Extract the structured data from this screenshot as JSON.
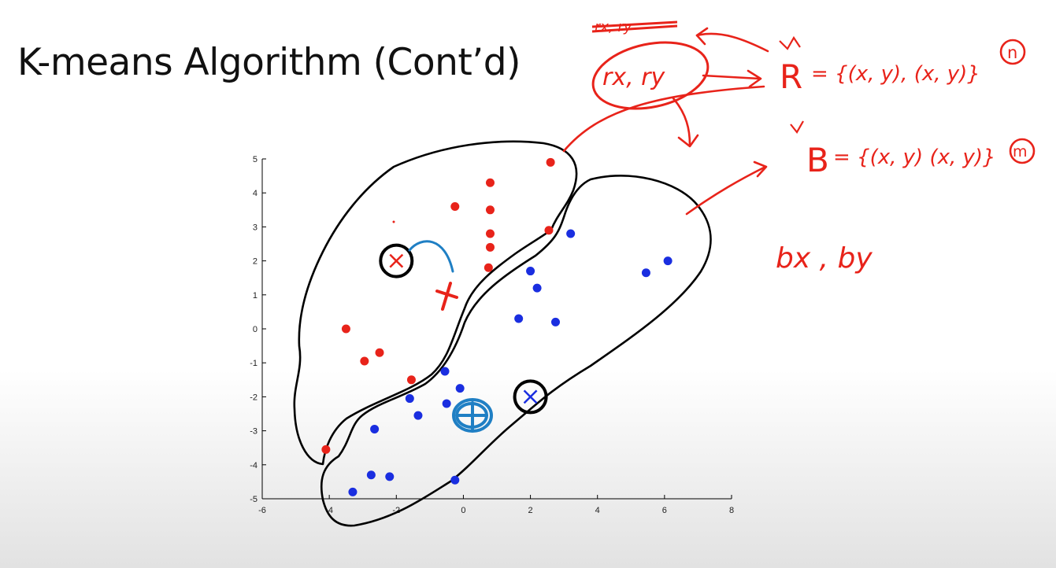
{
  "title": "K-means Algorithm (Cont’d)",
  "colors": {
    "red_points": "#e8231a",
    "blue_points": "#1a2ee0",
    "annotation_red": "#e8231a",
    "annotation_blue": "#1f7fc4",
    "ink_black": "#000000"
  },
  "chart_data": {
    "type": "scatter",
    "xlim": [
      -6,
      8
    ],
    "ylim": [
      -5,
      5
    ],
    "x_ticks": [
      -6,
      -4,
      -2,
      0,
      2,
      4,
      6,
      8
    ],
    "y_ticks": [
      5,
      4,
      3,
      2,
      1,
      0,
      -1,
      -2,
      -3,
      -4,
      -5
    ],
    "grid": false,
    "series": [
      {
        "color": "#e8231a",
        "points": [
          [
            2.6,
            4.9
          ],
          [
            0.8,
            4.3
          ],
          [
            -0.25,
            3.6
          ],
          [
            0.8,
            3.5
          ],
          [
            2.55,
            2.9
          ],
          [
            0.8,
            2.8
          ],
          [
            0.8,
            2.4
          ],
          [
            0.75,
            1.8
          ],
          [
            -3.5,
            0.0
          ],
          [
            -2.95,
            -0.95
          ],
          [
            -2.5,
            -0.7
          ],
          [
            -1.55,
            -1.5
          ],
          [
            -4.1,
            -3.55
          ]
        ]
      },
      {
        "color": "#1a2ee0",
        "points": [
          [
            3.2,
            2.8
          ],
          [
            6.1,
            2.0
          ],
          [
            5.45,
            1.65
          ],
          [
            2.0,
            1.7
          ],
          [
            2.2,
            1.2
          ],
          [
            1.65,
            0.3
          ],
          [
            2.75,
            0.2
          ],
          [
            -0.55,
            -1.25
          ],
          [
            -0.1,
            -1.75
          ],
          [
            -1.6,
            -2.05
          ],
          [
            -0.5,
            -2.2
          ],
          [
            -1.35,
            -2.55
          ],
          [
            -2.65,
            -2.95
          ],
          [
            -2.75,
            -4.3
          ],
          [
            -2.2,
            -4.35
          ],
          [
            -0.25,
            -4.45
          ],
          [
            -3.3,
            -4.8
          ]
        ]
      }
    ],
    "centroid_markers": [
      {
        "color": "#e8231a",
        "x": -2.0,
        "y": 2.0
      },
      {
        "color": "#1a2ee0",
        "x": 2.0,
        "y": -2.0
      }
    ]
  },
  "annotations": {
    "struck": "rx, ry",
    "centroid_vars": "rx, ry",
    "red_label": "R",
    "red_set": "= {(x, y), (x, y)}",
    "red_count": "n",
    "blue_label": "B",
    "blue_set": "= {(x, y) (x, y)}",
    "blue_count": "m",
    "blue_vars": "bx , by"
  }
}
